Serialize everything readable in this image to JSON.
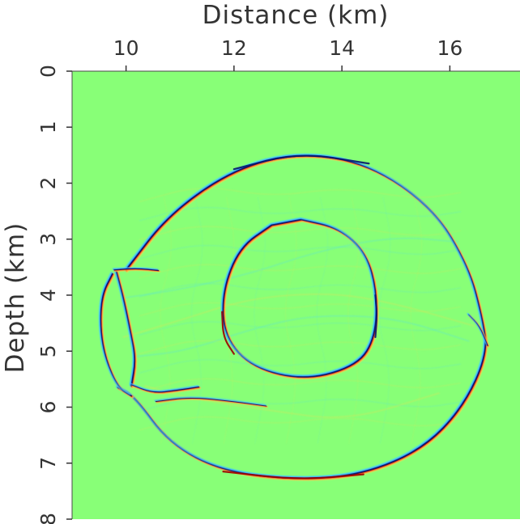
{
  "chart_data": {
    "type": "heatmap",
    "xlabel": "Distance (km)",
    "ylabel": "Depth (km)",
    "xlim": [
      9.0,
      17.3
    ],
    "ylim": [
      0,
      8
    ],
    "x_ticks": [
      10,
      12,
      14,
      16
    ],
    "y_ticks": [
      0,
      1,
      2,
      3,
      4,
      5,
      6,
      7,
      8
    ],
    "x_tick_labels": [
      "10",
      "12",
      "14",
      "16"
    ],
    "y_tick_labels": [
      "0",
      "1",
      "2",
      "3",
      "4",
      "5",
      "6",
      "7",
      "8"
    ],
    "background_color": "#88ff77",
    "colors": {
      "background": "#88ff77",
      "positive_strong": "#9b0000",
      "positive_mid": "#ff4b1f",
      "positive_weak": "#ffd84a",
      "negative_weak": "#46d8ff",
      "negative_mid": "#2a65ff",
      "negative_strong": "#07166d"
    },
    "features": [
      {
        "name": "outer boundary",
        "path_points": [
          [
            10.0,
            3.55
          ],
          [
            10.8,
            2.55
          ],
          [
            12.0,
            1.75
          ],
          [
            13.2,
            1.45
          ],
          [
            14.5,
            1.65
          ],
          [
            15.7,
            2.45
          ],
          [
            16.35,
            3.5
          ],
          [
            16.6,
            4.4
          ],
          [
            16.7,
            5.05
          ],
          [
            16.25,
            6.0
          ],
          [
            15.5,
            6.75
          ],
          [
            14.4,
            7.2
          ],
          [
            13.2,
            7.3
          ],
          [
            11.8,
            7.15
          ],
          [
            10.8,
            6.65
          ],
          [
            10.15,
            5.8
          ],
          [
            9.85,
            5.65
          ]
        ]
      },
      {
        "name": "inner ellipse",
        "path_points": [
          [
            13.25,
            2.65
          ],
          [
            13.95,
            2.8
          ],
          [
            14.45,
            3.25
          ],
          [
            14.65,
            3.95
          ],
          [
            14.62,
            4.75
          ],
          [
            14.3,
            5.25
          ],
          [
            13.35,
            5.52
          ],
          [
            12.35,
            5.3
          ],
          [
            11.82,
            4.75
          ],
          [
            11.78,
            3.95
          ],
          [
            12.1,
            3.15
          ],
          [
            12.7,
            2.75
          ]
        ]
      },
      {
        "name": "left side event",
        "path_points": [
          [
            9.75,
            3.62
          ],
          [
            9.55,
            4.0
          ],
          [
            9.52,
            4.6
          ],
          [
            9.62,
            5.15
          ],
          [
            9.85,
            5.65
          ],
          [
            10.1,
            5.8
          ]
        ]
      },
      {
        "name": "left inner arc",
        "path_points": [
          [
            9.82,
            3.58
          ],
          [
            9.95,
            4.05
          ],
          [
            10.08,
            4.65
          ],
          [
            10.18,
            5.15
          ],
          [
            10.1,
            5.62
          ]
        ]
      },
      {
        "name": "upper streak",
        "path_points": [
          [
            9.78,
            3.55
          ],
          [
            10.2,
            3.52
          ],
          [
            10.6,
            3.56
          ]
        ]
      },
      {
        "name": "lower streak",
        "path_points": [
          [
            10.1,
            5.6
          ],
          [
            10.5,
            5.75
          ],
          [
            10.95,
            5.7
          ],
          [
            11.35,
            5.64
          ]
        ]
      },
      {
        "name": "lower weak streak",
        "path_points": [
          [
            10.55,
            5.9
          ],
          [
            11.2,
            5.82
          ],
          [
            12.0,
            5.9
          ],
          [
            12.6,
            5.98
          ]
        ]
      },
      {
        "name": "right cusp",
        "path_points": [
          [
            16.35,
            4.35
          ],
          [
            16.55,
            4.55
          ],
          [
            16.7,
            4.9
          ]
        ]
      }
    ]
  }
}
